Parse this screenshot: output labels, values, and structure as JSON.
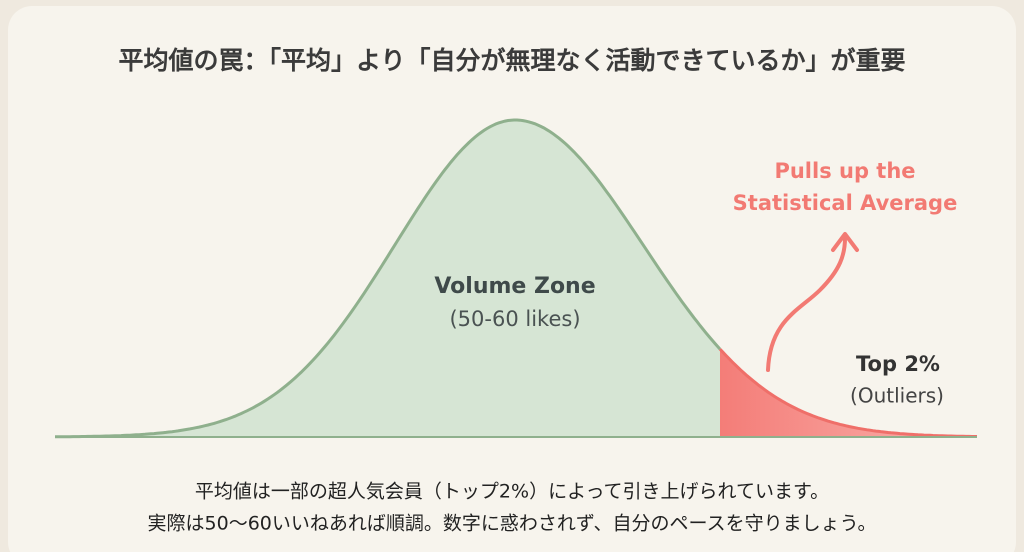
{
  "title": "平均値の罠：「平均」より「自分が無理なく活動できているか」が重要",
  "labels": {
    "volume_zone": "Volume Zone",
    "volume_range": "(50-60 likes)",
    "pull_line1": "Pulls up the",
    "pull_line2": "Statistical Average",
    "top": "Top 2%",
    "outliers": "(Outliers)"
  },
  "footer": [
    "平均値は一部の超人気会員（トップ2%）によって引き上げられています。",
    "実際は50〜60いいねあれば順調。数字に惑わされず、自分のペースを守りましょう。"
  ]
}
